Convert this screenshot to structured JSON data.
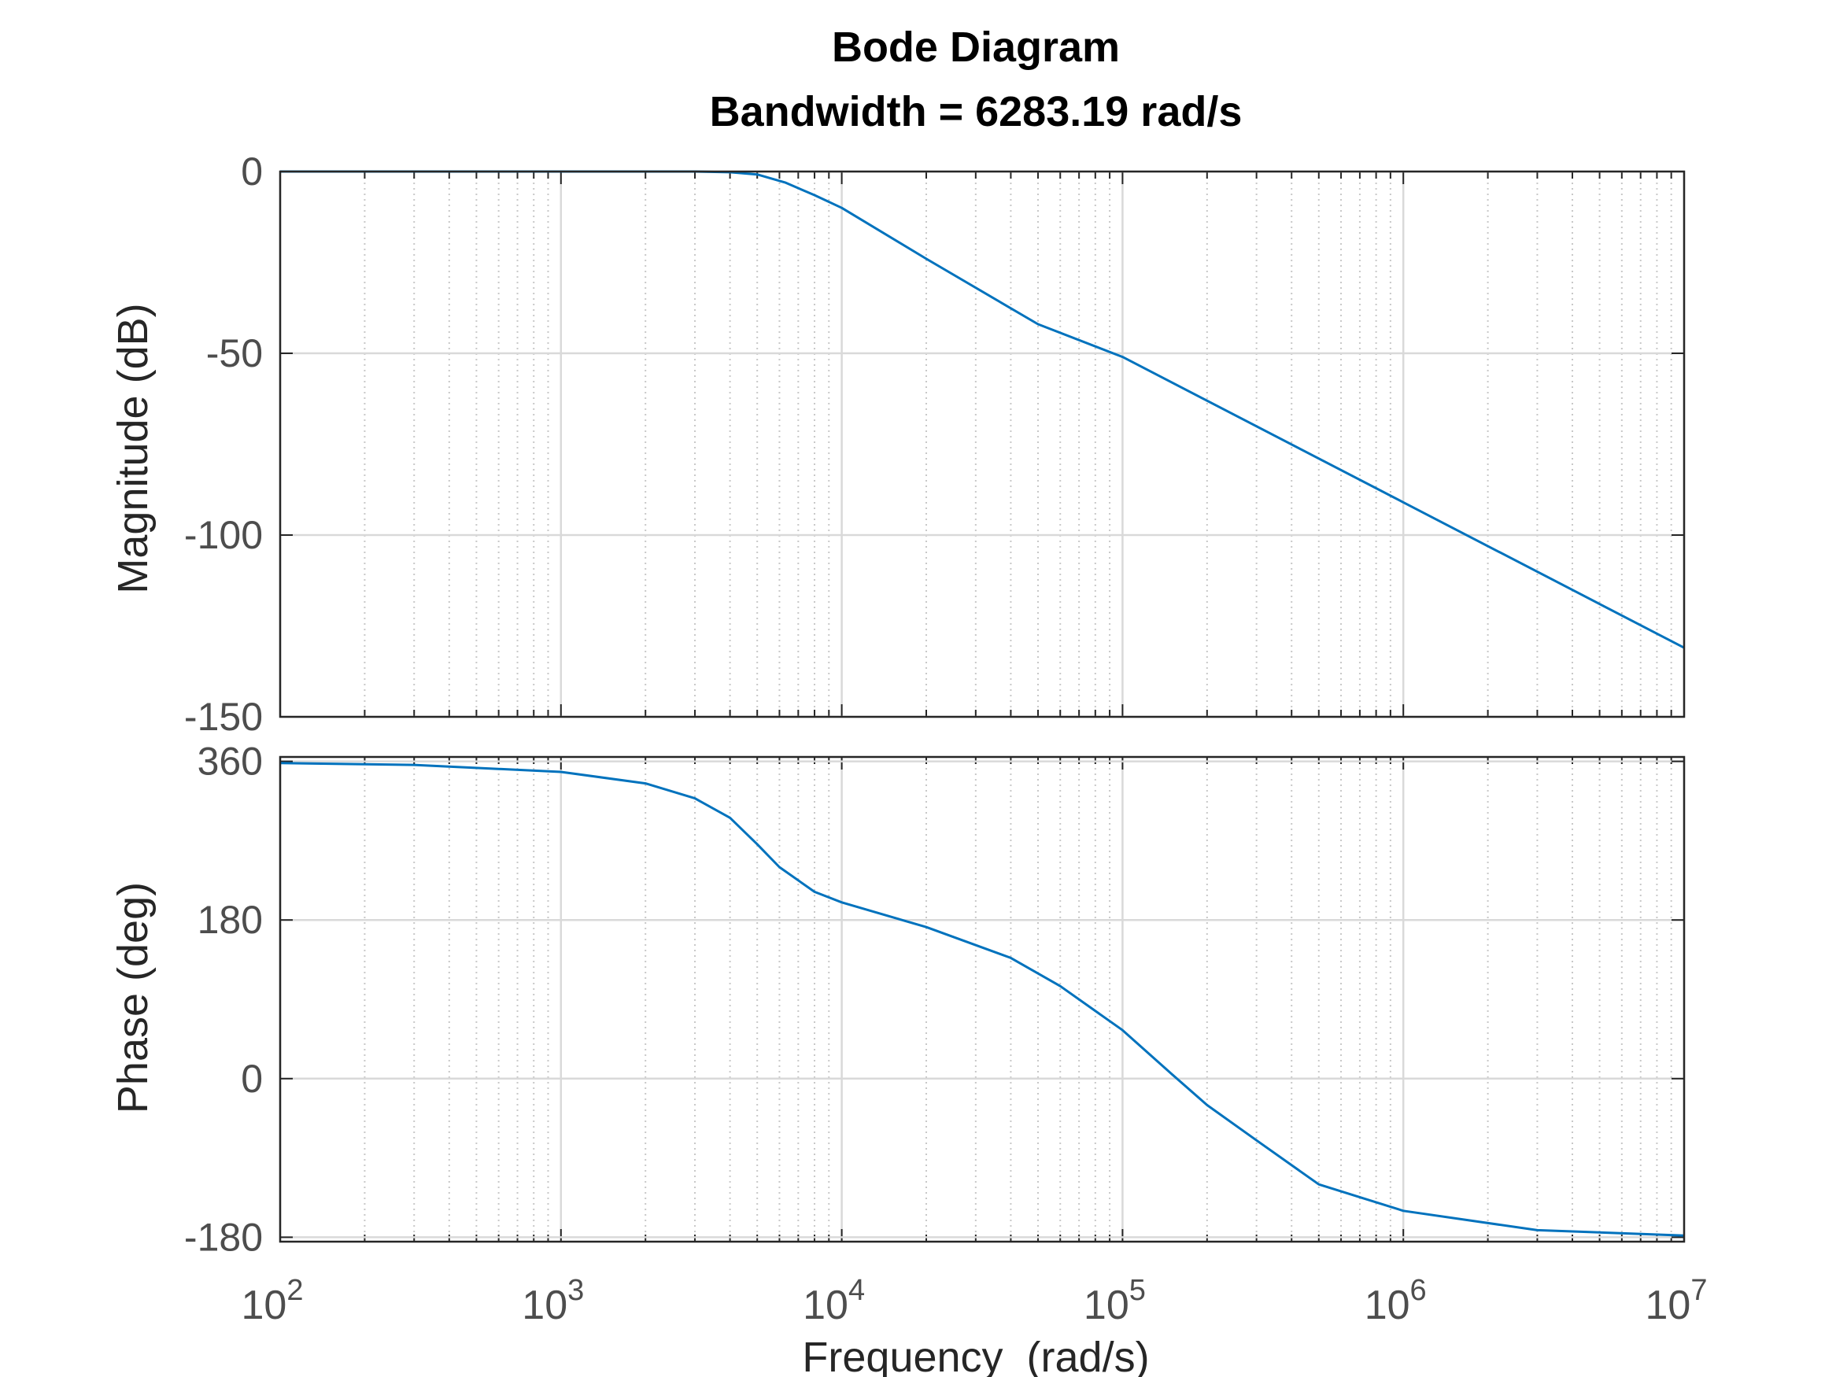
{
  "chart_data": {
    "type": "line",
    "title": "Bode Diagram",
    "subtitle": "Bandwidth = 6283.19 rad/s",
    "xlabel": "Frequency  (rad/s)",
    "xscale": "log",
    "xlim": [
      100,
      10000000
    ],
    "x_tick_base": "10",
    "x_tick_exponents": [
      "2",
      "3",
      "4",
      "5",
      "6",
      "7"
    ],
    "grid": true,
    "line_color": "#0072BD",
    "magnitude": {
      "ylabel": "Magnitude (dB)",
      "ylim": [
        -150,
        0
      ],
      "yticks": [
        0,
        -50,
        -100,
        -150
      ],
      "ytick_labels": [
        "0",
        "-50",
        "-100",
        "-150"
      ],
      "series": [
        {
          "name": "Magnitude",
          "x": [
            100,
            1000,
            3000,
            4000,
            5000,
            6283,
            8000,
            10000,
            20000,
            50000,
            100000,
            1000000,
            10000000
          ],
          "values": [
            0,
            0,
            0,
            -0.2,
            -0.8,
            -3,
            -6.5,
            -10,
            -24,
            -42,
            -51,
            -91,
            -131
          ]
        }
      ]
    },
    "phase": {
      "ylabel": "Phase (deg)",
      "ylim": [
        -185,
        365
      ],
      "yticks": [
        360,
        180,
        0,
        -180
      ],
      "ytick_labels": [
        "360",
        "180",
        "0",
        "-180"
      ],
      "series": [
        {
          "name": "Phase",
          "x": [
            100,
            300,
            1000,
            2000,
            3000,
            4000,
            5000,
            6000,
            8000,
            10000,
            20000,
            40000,
            60000,
            100000,
            150000,
            200000,
            300000,
            500000,
            1000000,
            3000000,
            10000000
          ],
          "values": [
            358,
            356,
            348,
            335,
            318,
            296,
            266,
            240,
            212,
            200,
            172,
            137,
            105,
            55,
            5,
            -30,
            -70,
            -120,
            -150,
            -172,
            -178
          ]
        }
      ]
    }
  }
}
